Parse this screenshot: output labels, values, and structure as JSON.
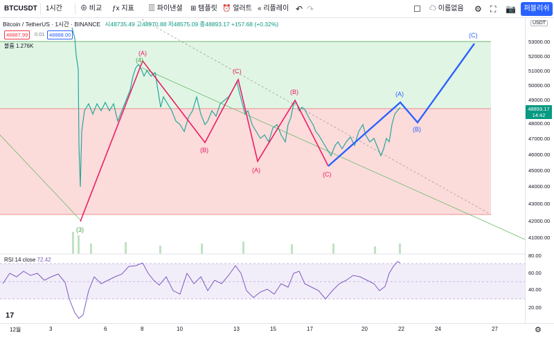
{
  "toolbar": {
    "symbol": "BTCUSDT",
    "interval": "1시간",
    "compare": "비교",
    "indicators": "지표",
    "financials": "파이낸셜",
    "templates": "템플릿",
    "alert": "얼러트",
    "replay": "리플레이",
    "unnamed_layout": "이름없음",
    "publish": "퍼블리쉬"
  },
  "legend": {
    "title": "Bitcoin / TetherUS · 1시간 · BINANCE",
    "ohlc": "시48735.49 고48970.88 저48575.09 종48893.17 +157.68 (+0.32%)",
    "sell_price": "48887.99",
    "spread": "0.01",
    "buy_price": "48888.00",
    "volume": "볼륨 1.276K",
    "currency": "USDT"
  },
  "rsi": {
    "label": "RSI 14 close",
    "value": "72.42"
  },
  "price_axis": [
    "53000.00",
    "52000.00",
    "51000.00",
    "50000.00",
    "49000.00",
    "48000.00",
    "47000.00",
    "46000.00",
    "45000.00",
    "44000.00",
    "43000.00",
    "42000.00",
    "41000.00"
  ],
  "current_price": {
    "value": "48893.17",
    "time": "14:42"
  },
  "rsi_axis": [
    "80.00",
    "60.00",
    "40.00",
    "20.00"
  ],
  "time_axis": [
    "12월",
    "3",
    "6",
    "8",
    "10",
    "13",
    "15",
    "17",
    "20",
    "22",
    "24",
    "27"
  ],
  "wave_labels": {
    "a1": "(A)",
    "four": "(4)",
    "b1": "(B)",
    "c1": "(C)",
    "a2": "(A)",
    "b2": "(B)",
    "c2": "(C)",
    "three": "(3)",
    "proj_a": "(A)",
    "proj_b": "(B)",
    "proj_c": "(C)"
  },
  "colors": {
    "up": "#089981",
    "wave": "#e91e63",
    "projection": "#2962ff",
    "accent": "#2962ff"
  }
}
